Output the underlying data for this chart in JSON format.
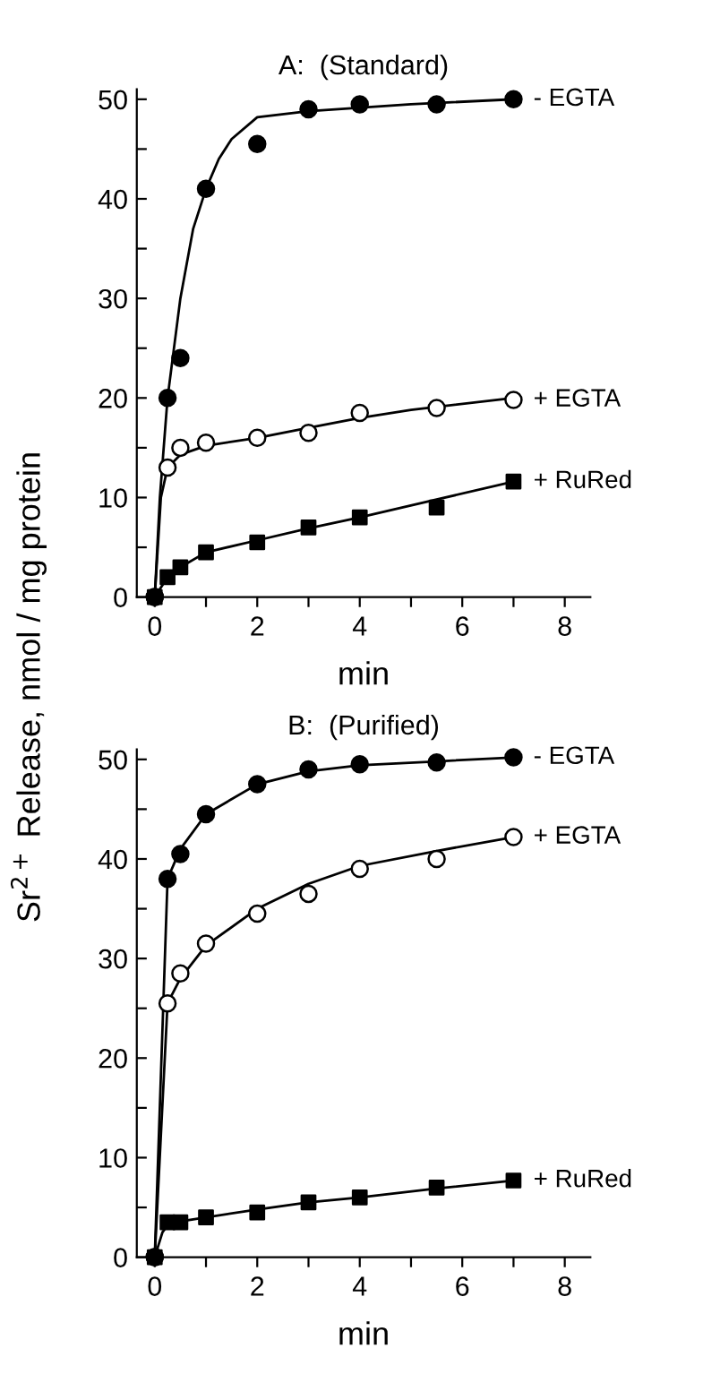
{
  "chart_data": [
    {
      "type": "scatter",
      "title": "A:  (Standard)",
      "xlabel": "min",
      "ylabel": "Sr$^{2+}$ Release, nmol / mg protein",
      "xlim": [
        -0.35,
        8.5
      ],
      "ylim": [
        0,
        51
      ],
      "xticks": [
        0,
        {
          "value": 1,
          "label": null
        },
        2,
        {
          "value": 3,
          "label": null
        },
        4,
        {
          "value": 5,
          "label": null
        },
        6,
        {
          "value": 7,
          "label": null
        },
        8
      ],
      "yticks": [
        0,
        {
          "value": 5,
          "label": null
        },
        10,
        {
          "value": 15,
          "label": null
        },
        20,
        {
          "value": 25,
          "label": null
        },
        30,
        {
          "value": 35,
          "label": null
        },
        40,
        {
          "value": 45,
          "label": null
        },
        50
      ],
      "grid": false,
      "legend": false,
      "series": [
        {
          "type": "line",
          "color": "#000000",
          "marker": "none",
          "line_style": "solid",
          "x": [
            0,
            0.1,
            0.25,
            0.5,
            0.75,
            1,
            1.25,
            1.5,
            2,
            3,
            5,
            7
          ],
          "values": [
            0,
            10,
            20,
            30,
            37,
            41,
            44,
            46,
            48.2,
            48.8,
            49.5,
            50
          ]
        },
        {
          "type": "line",
          "color": "#000000",
          "marker": "none",
          "line_style": "solid",
          "x": [
            0,
            0.12,
            0.25,
            0.5,
            1,
            2,
            3,
            4,
            5,
            7
          ],
          "values": [
            0,
            10,
            13,
            14.3,
            15.2,
            16,
            17,
            18,
            18.8,
            20
          ]
        },
        {
          "type": "line",
          "color": "#000000",
          "marker": "none",
          "line_style": "solid",
          "x": [
            0,
            0.25,
            0.5,
            1,
            2,
            3,
            4,
            5.5,
            7
          ],
          "values": [
            0,
            2,
            3,
            4.5,
            5.7,
            6.9,
            8,
            9.8,
            11.6
          ]
        },
        {
          "name": "- EGTA",
          "color": "#000000",
          "marker": "circle",
          "x": [
            0,
            0.25,
            0.5,
            1,
            2,
            3,
            4,
            5.5,
            7
          ],
          "values": [
            0,
            20,
            24,
            41,
            45.5,
            49,
            49.5,
            49.5,
            50
          ]
        },
        {
          "name": "+ EGTA",
          "color": "#ffffff",
          "marker": "circle",
          "x": [
            0,
            0.25,
            0.5,
            1,
            2,
            3,
            4,
            5.5,
            7
          ],
          "values": [
            0,
            13,
            15,
            15.5,
            16,
            16.5,
            18.5,
            19,
            19.8
          ]
        },
        {
          "name": "+ RuRed",
          "color": "#000000",
          "marker": "square",
          "x": [
            0,
            0.25,
            0.5,
            1,
            2,
            3,
            4,
            5.5,
            7
          ],
          "values": [
            0,
            2,
            3,
            4.5,
            5.5,
            7,
            8,
            9,
            11.6
          ]
        }
      ]
    },
    {
      "type": "scatter",
      "title": "B:  (Purified)",
      "xlabel": "min",
      "xlim": [
        -0.35,
        8.5
      ],
      "ylim": [
        0,
        51
      ],
      "xticks": [
        0,
        {
          "value": 1,
          "label": null
        },
        2,
        {
          "value": 3,
          "label": null
        },
        4,
        {
          "value": 5,
          "label": null
        },
        6,
        {
          "value": 7,
          "label": null
        },
        8
      ],
      "yticks": [
        0,
        {
          "value": 5,
          "label": null
        },
        10,
        {
          "value": 15,
          "label": null
        },
        20,
        {
          "value": 25,
          "label": null
        },
        30,
        {
          "value": 35,
          "label": null
        },
        40,
        {
          "value": 45,
          "label": null
        },
        50
      ],
      "grid": false,
      "legend": false,
      "series": [
        {
          "type": "line",
          "color": "#000000",
          "marker": "none",
          "line_style": "solid",
          "x": [
            0,
            0.25,
            0.5,
            1,
            2,
            3,
            4,
            5.5,
            7
          ],
          "values": [
            0,
            38,
            41,
            44.5,
            47.5,
            48.8,
            49.4,
            49.8,
            50.2
          ]
        },
        {
          "type": "line",
          "color": "#000000",
          "marker": "none",
          "line_style": "solid",
          "x": [
            0,
            0.25,
            0.5,
            1,
            2,
            3,
            4,
            5.5,
            7
          ],
          "values": [
            0,
            25.5,
            28,
            31.3,
            35,
            37.5,
            39.3,
            40.8,
            42.2
          ]
        },
        {
          "type": "line",
          "color": "#000000",
          "marker": "none",
          "line_style": "solid",
          "x": [
            0,
            0.15,
            0.25,
            0.5,
            1,
            2,
            3,
            4,
            5.5,
            7
          ],
          "values": [
            0,
            2.5,
            3.2,
            3.6,
            4,
            4.8,
            5.5,
            6,
            6.9,
            7.7
          ]
        },
        {
          "name": "- EGTA",
          "color": "#000000",
          "marker": "circle",
          "x": [
            0,
            0.25,
            0.5,
            1,
            2,
            3,
            4,
            5.5,
            7
          ],
          "values": [
            0,
            38,
            40.5,
            44.5,
            47.5,
            49,
            49.5,
            49.7,
            50.2
          ]
        },
        {
          "name": "+ EGTA",
          "color": "#ffffff",
          "marker": "circle",
          "x": [
            0,
            0.25,
            0.5,
            1,
            2,
            3,
            4,
            5.5,
            7
          ],
          "values": [
            0,
            25.5,
            28.5,
            31.5,
            34.5,
            36.5,
            39,
            40,
            42.2
          ]
        },
        {
          "name": "+ RuRed",
          "color": "#000000",
          "marker": "square",
          "x": [
            0,
            0.25,
            0.5,
            1,
            2,
            3,
            4,
            5.5,
            7
          ],
          "values": [
            0,
            3.5,
            3.5,
            4,
            4.5,
            5.5,
            6,
            7,
            7.7
          ]
        }
      ]
    }
  ]
}
